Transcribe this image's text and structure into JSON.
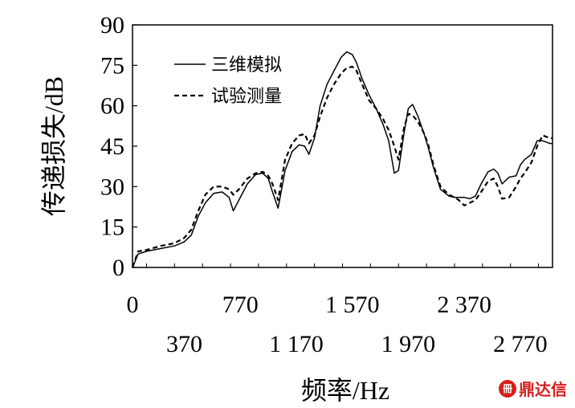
{
  "chart_data": {
    "type": "line",
    "xlabel": "频率/Hz",
    "ylabel": "传递损失/dB",
    "xlim": [
      0,
      3000
    ],
    "ylim": [
      0,
      90
    ],
    "yticks": [
      0,
      15,
      30,
      45,
      60,
      75,
      90
    ],
    "xticks_top": [
      {
        "value": 0,
        "label": "0"
      },
      {
        "value": 770,
        "label": "770"
      },
      {
        "value": 1570,
        "label": "1 570"
      },
      {
        "value": 2370,
        "label": "2 370"
      }
    ],
    "xticks_bottom": [
      {
        "value": 370,
        "label": "370"
      },
      {
        "value": 1170,
        "label": "1 170"
      },
      {
        "value": 1970,
        "label": "1 970"
      },
      {
        "value": 2770,
        "label": "2 770"
      }
    ],
    "grid": false,
    "legend_position": "top-left",
    "series": [
      {
        "name": "三维模拟",
        "style": "solid",
        "color": "#000000",
        "x": [
          0,
          40,
          100,
          200,
          300,
          370,
          420,
          470,
          520,
          580,
          640,
          690,
          720,
          760,
          820,
          880,
          930,
          970,
          1000,
          1040,
          1090,
          1140,
          1190,
          1230,
          1260,
          1300,
          1340,
          1390,
          1440,
          1490,
          1530,
          1570,
          1600,
          1640,
          1690,
          1740,
          1790,
          1830,
          1870,
          1900,
          1940,
          1970,
          2000,
          2040,
          2080,
          2110,
          2150,
          2200,
          2260,
          2300,
          2330,
          2370,
          2410,
          2450,
          2490,
          2540,
          2580,
          2610,
          2640,
          2690,
          2740,
          2770,
          2800,
          2850,
          2890,
          2930,
          2980,
          3000
        ],
        "y": [
          0,
          5,
          6,
          7,
          8,
          9.5,
          12,
          19,
          24,
          27.5,
          28,
          26,
          21,
          25,
          31,
          34.5,
          35,
          33,
          28,
          22,
          36,
          43,
          45.5,
          45,
          42,
          48,
          60,
          68,
          73,
          78,
          80,
          79,
          76,
          70,
          64,
          59,
          53,
          47,
          35,
          36,
          50,
          59,
          60.5,
          56,
          50,
          45,
          37,
          29,
          26.5,
          26,
          26,
          26,
          25.5,
          26.5,
          31,
          35.5,
          36.5,
          35,
          31,
          33.5,
          34,
          38,
          40,
          42,
          47,
          47,
          46,
          46
        ]
      },
      {
        "name": "试验测量",
        "style": "dashed",
        "color": "#000000",
        "x": [
          0,
          40,
          100,
          200,
          300,
          370,
          420,
          470,
          520,
          580,
          640,
          690,
          720,
          760,
          820,
          880,
          930,
          970,
          1000,
          1040,
          1090,
          1140,
          1190,
          1230,
          1260,
          1300,
          1340,
          1390,
          1440,
          1490,
          1530,
          1570,
          1600,
          1640,
          1690,
          1740,
          1790,
          1830,
          1870,
          1900,
          1940,
          1970,
          2000,
          2040,
          2080,
          2110,
          2150,
          2200,
          2260,
          2300,
          2330,
          2370,
          2410,
          2450,
          2490,
          2540,
          2580,
          2610,
          2640,
          2690,
          2740,
          2770,
          2800,
          2850,
          2890,
          2930,
          2980,
          3000
        ],
        "y": [
          0,
          6,
          6.5,
          8,
          9,
          11,
          14,
          21,
          27,
          30,
          30,
          29,
          27,
          29,
          33,
          35,
          35.5,
          34,
          31,
          25,
          40,
          46,
          49,
          49.5,
          46,
          49,
          56,
          63,
          68,
          72,
          74,
          74.5,
          73,
          68,
          62,
          59,
          55,
          51,
          45,
          40,
          52,
          57,
          56.5,
          54,
          50,
          46,
          38,
          30,
          27,
          26,
          25,
          23,
          24,
          25,
          28,
          32,
          33,
          30,
          25.5,
          26,
          30,
          33,
          35,
          39,
          45,
          49,
          48,
          48
        ]
      }
    ]
  },
  "watermark": {
    "badge": "冊",
    "text": "鼎达信"
  }
}
